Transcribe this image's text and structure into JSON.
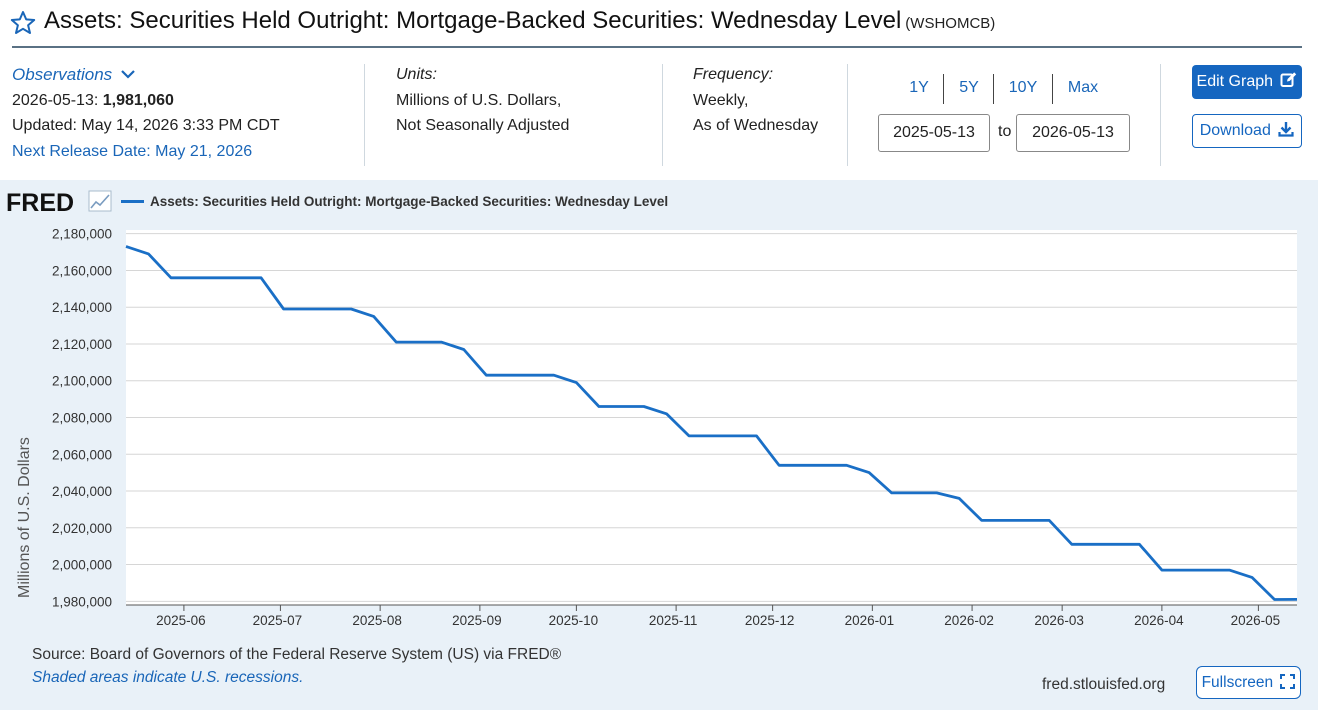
{
  "header": {
    "title": "Assets: Securities Held Outright: Mortgage-Backed Securities: Wednesday Level",
    "series_code": "(WSHOMCB)"
  },
  "observations": {
    "label": "Observations",
    "date": "2026-05-13:",
    "value": "1,981,060",
    "updated": "Updated: May 14, 2026 3:33 PM CDT",
    "next_release": "Next Release Date: May 21, 2026"
  },
  "units": {
    "label": "Units:",
    "line1": "Millions of U.S. Dollars,",
    "line2": "Not Seasonally Adjusted"
  },
  "frequency": {
    "label": "Frequency:",
    "line1": "Weekly,",
    "line2": "As of Wednesday"
  },
  "range": {
    "buttons": [
      "1Y",
      "5Y",
      "10Y",
      "Max"
    ],
    "start": "2025-05-13",
    "to_label": "to",
    "end": "2026-05-13"
  },
  "actions": {
    "edit_graph": "Edit Graph",
    "download": "Download",
    "fullscreen": "Fullscreen"
  },
  "footer": {
    "source": "Source: Board of Governors of the Federal Reserve System (US) via FRED®",
    "recessions_note": "Shaded areas indicate U.S. recessions.",
    "site": "fred.stlouisfed.org"
  },
  "logo_text": "FRED",
  "colors": {
    "accent": "#1566c0",
    "line": "#1a6fc6",
    "panel": "#e9f1f8"
  },
  "chart_data": {
    "type": "line",
    "legend": "Assets: Securities Held Outright: Mortgage-Backed Securities: Wednesday Level",
    "ylabel": "Millions of U.S. Dollars",
    "ylim": [
      1978000,
      2182000
    ],
    "yticks": [
      2180000,
      2160000,
      2140000,
      2120000,
      2100000,
      2080000,
      2060000,
      2040000,
      2020000,
      2000000,
      1980000
    ],
    "ytick_labels": [
      "2,180,000",
      "2,160,000",
      "2,140,000",
      "2,120,000",
      "2,100,000",
      "2,080,000",
      "2,060,000",
      "2,040,000",
      "2,020,000",
      "2,000,000",
      "1,980,000"
    ],
    "xlim": [
      "2025-05-14",
      "2026-05-13"
    ],
    "xticks": [
      "2025-06-01",
      "2025-07-01",
      "2025-08-01",
      "2025-09-01",
      "2025-10-01",
      "2025-11-01",
      "2025-12-01",
      "2026-01-01",
      "2026-02-01",
      "2026-03-01",
      "2026-04-01",
      "2026-05-01"
    ],
    "xtick_labels": [
      "2025-06",
      "2025-07",
      "2025-08",
      "2025-09",
      "2025-10",
      "2025-11",
      "2025-12",
      "2026-01",
      "2026-02",
      "2026-03",
      "2026-04",
      "2026-05"
    ],
    "grid": true,
    "x": [
      "2025-05-14",
      "2025-05-21",
      "2025-05-28",
      "2025-06-04",
      "2025-06-11",
      "2025-06-18",
      "2025-06-25",
      "2025-07-02",
      "2025-07-09",
      "2025-07-16",
      "2025-07-23",
      "2025-07-30",
      "2025-08-06",
      "2025-08-13",
      "2025-08-20",
      "2025-08-27",
      "2025-09-03",
      "2025-09-10",
      "2025-09-17",
      "2025-09-24",
      "2025-10-01",
      "2025-10-08",
      "2025-10-15",
      "2025-10-22",
      "2025-10-29",
      "2025-11-05",
      "2025-11-12",
      "2025-11-19",
      "2025-11-26",
      "2025-12-03",
      "2025-12-10",
      "2025-12-17",
      "2025-12-24",
      "2025-12-31",
      "2026-01-07",
      "2026-01-14",
      "2026-01-21",
      "2026-01-28",
      "2026-02-04",
      "2026-02-11",
      "2026-02-18",
      "2026-02-25",
      "2026-03-04",
      "2026-03-11",
      "2026-03-18",
      "2026-03-25",
      "2026-04-01",
      "2026-04-08",
      "2026-04-15",
      "2026-04-22",
      "2026-04-29",
      "2026-05-06",
      "2026-05-13"
    ],
    "y": [
      2173000,
      2169000,
      2156000,
      2156000,
      2156000,
      2156000,
      2156000,
      2139000,
      2139000,
      2139000,
      2139000,
      2135000,
      2121000,
      2121000,
      2121000,
      2117000,
      2103000,
      2103000,
      2103000,
      2103000,
      2099000,
      2086000,
      2086000,
      2086000,
      2082000,
      2070000,
      2070000,
      2070000,
      2070000,
      2054000,
      2054000,
      2054000,
      2054000,
      2050000,
      2039000,
      2039000,
      2039000,
      2036000,
      2024000,
      2024000,
      2024000,
      2024000,
      2011000,
      2011000,
      2011000,
      2011000,
      1997000,
      1997000,
      1997000,
      1997000,
      1993000,
      1981000,
      1981060
    ]
  }
}
